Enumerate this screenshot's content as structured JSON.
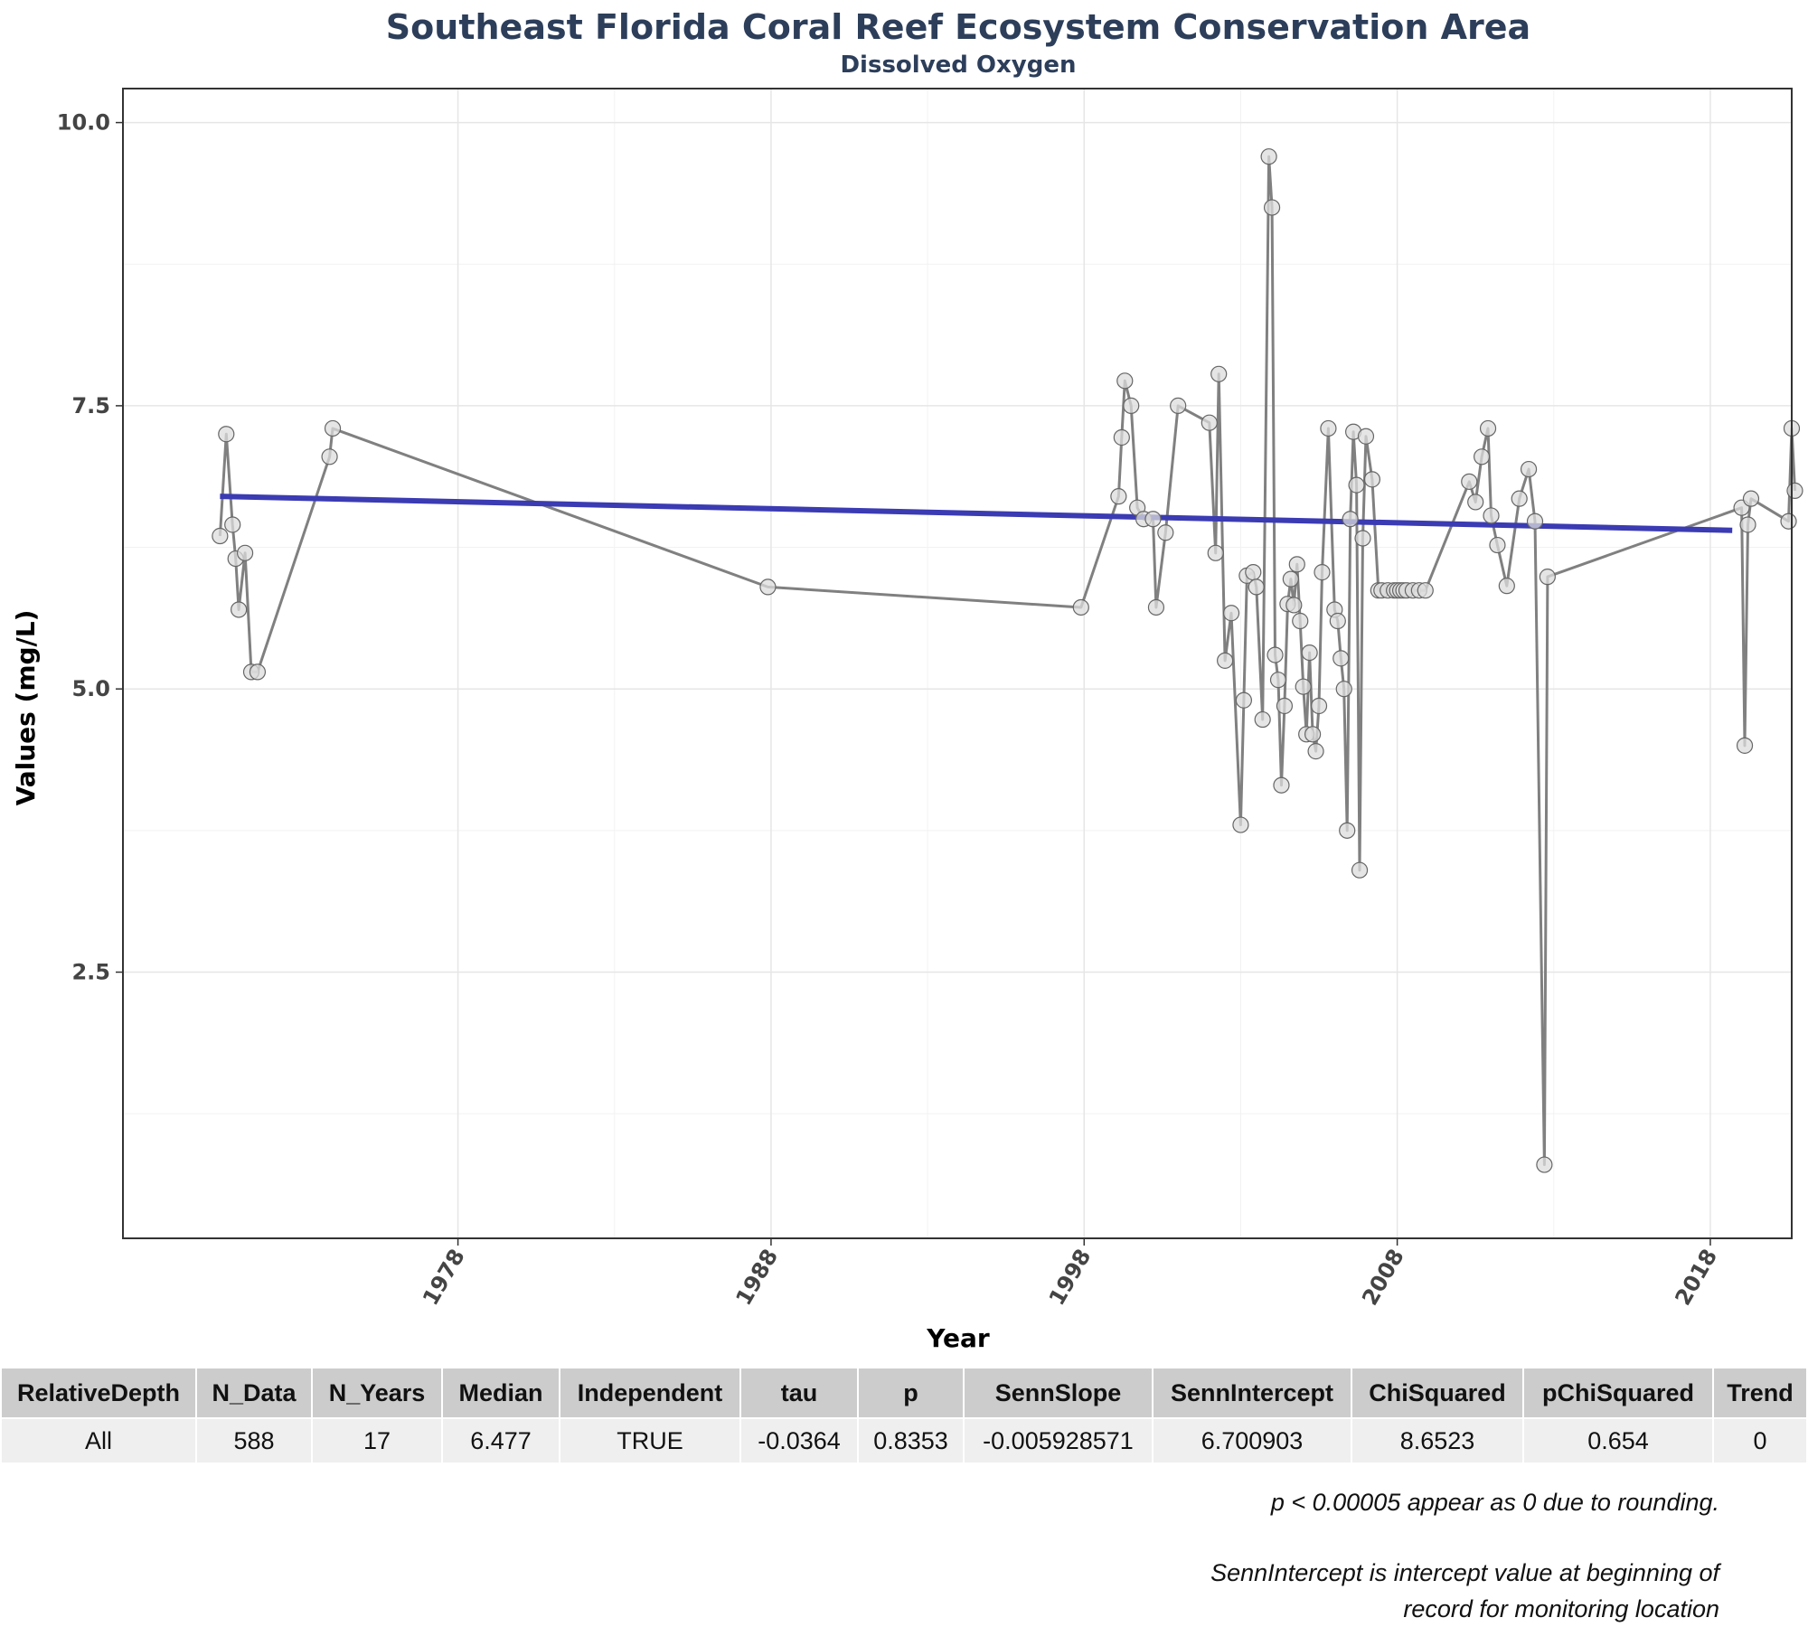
{
  "chart_data": {
    "type": "line",
    "title": "Southeast Florida Coral Reef Ecosystem Conservation Area",
    "subtitle": "Dissolved Oxygen",
    "xlabel": "Year",
    "ylabel": "Values (mg/L)",
    "xlim": [
      1967.3,
      2020.6
    ],
    "ylim": [
      0.15,
      10.3
    ],
    "x_ticks": [
      "1978",
      "1988",
      "1998",
      "2008",
      "2018"
    ],
    "y_ticks": [
      "2.5",
      "5.0",
      "7.5",
      "10.0"
    ],
    "grid": true,
    "series": [
      {
        "color": "#808080",
        "x": [
          1970.4,
          1970.6,
          1970.8,
          1970.9,
          1971.0,
          1971.2,
          1971.4,
          1971.6,
          1973.9,
          1974.0,
          1987.9,
          1997.9,
          1999.1,
          1999.2,
          1999.3,
          1999.5,
          1999.7,
          1999.9,
          2000.2,
          2000.3,
          2000.6,
          2001.0,
          2002.0,
          2002.2,
          2002.3,
          2002.5,
          2002.7,
          2003.0,
          2003.1,
          2003.2,
          2003.4,
          2003.5,
          2003.7,
          2003.9,
          2004.0,
          2004.1,
          2004.2,
          2004.3,
          2004.4,
          2004.5,
          2004.6,
          2004.7,
          2004.8,
          2004.9,
          2005.0,
          2005.1,
          2005.2,
          2005.3,
          2005.4,
          2005.5,
          2005.6,
          2005.8,
          2006.0,
          2006.1,
          2006.2,
          2006.3,
          2006.4,
          2006.5,
          2006.6,
          2006.7,
          2006.8,
          2006.9,
          2007.0,
          2007.2,
          2007.4,
          2007.5,
          2007.7,
          2007.9,
          2008.0,
          2008.1,
          2008.2,
          2008.3,
          2008.5,
          2008.7,
          2008.9,
          2010.3,
          2010.5,
          2010.7,
          2010.9,
          2011.0,
          2011.2,
          2011.5,
          2011.9,
          2012.2,
          2012.4,
          2012.7,
          2012.8,
          2019.0,
          2019.1,
          2019.2,
          2019.3,
          2020.5,
          2020.6,
          2020.7
        ],
        "y": [
          6.35,
          7.25,
          6.45,
          6.15,
          5.7,
          6.2,
          5.15,
          5.15,
          7.05,
          7.3,
          5.9,
          5.72,
          6.7,
          7.22,
          7.72,
          7.5,
          6.6,
          6.5,
          6.5,
          5.72,
          6.38,
          7.5,
          7.35,
          6.2,
          7.78,
          5.25,
          5.67,
          3.8,
          4.9,
          6.0,
          6.03,
          5.9,
          4.73,
          9.7,
          9.25,
          5.3,
          5.08,
          4.15,
          4.85,
          5.75,
          5.97,
          5.74,
          6.1,
          5.6,
          5.02,
          4.6,
          5.32,
          4.6,
          4.45,
          4.85,
          6.03,
          7.3,
          5.7,
          5.6,
          5.27,
          5.0,
          3.75,
          6.5,
          7.27,
          6.8,
          3.4,
          6.33,
          7.23,
          6.85,
          5.87,
          5.87,
          5.87,
          5.87,
          5.87,
          5.87,
          5.87,
          5.87,
          5.87,
          5.87,
          5.87,
          6.83,
          6.65,
          7.05,
          7.3,
          6.53,
          6.27,
          5.91,
          6.68,
          6.94,
          6.48,
          0.8,
          5.99,
          6.6,
          4.5,
          6.45,
          6.68,
          6.48,
          7.3,
          6.75
        ]
      },
      {
        "color": "#3b3bb3",
        "x": [
          1970.4,
          2018.7
        ],
        "y": [
          6.7,
          6.4
        ]
      }
    ]
  },
  "stats_table": {
    "headers": [
      "RelativeDepth",
      "N_Data",
      "N_Years",
      "Median",
      "Independent",
      "tau",
      "p",
      "SennSlope",
      "SennIntercept",
      "ChiSquared",
      "pChiSquared",
      "Trend"
    ],
    "rows": [
      [
        "All",
        "588",
        "17",
        "6.477",
        "TRUE",
        "-0.0364",
        "0.8353",
        "-0.005928571",
        "6.700903",
        "8.6523",
        "0.654",
        "0"
      ]
    ]
  },
  "notes": {
    "rounding": "p < 0.00005 appear as 0 due to rounding.",
    "intercept_line1": "SennIntercept is intercept value at beginning of",
    "intercept_line2": "record for monitoring location"
  }
}
